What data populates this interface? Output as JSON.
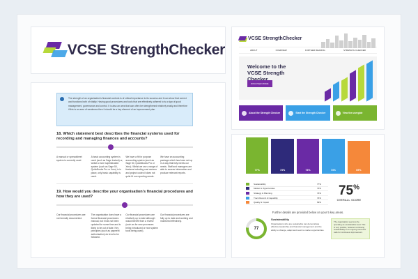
{
  "logo": {
    "text": "VCSE StrengthChecker",
    "brand_colors": [
      "#6a2aa5",
      "#b7d93a",
      "#3aa0e6",
      "#2e2a4a"
    ]
  },
  "questionnaire": {
    "info_text": "The strength of an organisation's financial controls is of critical importance to its success and it can show that correct and functions both of vitality. Having good procedures and tools that are effectively adhered to is a sign of good management, governance and control. It is also an area that can often be strengthened relatively easily and therefore if this is an area of weakness then it should be a key element of an improvement plan.",
    "questions": [
      {
        "title": "18. Which statement best describes the financial systems used for recording and managing finances and accounts?",
        "selected": 0.4,
        "options": [
          "A manual or spreadsheet system is currently used.",
          "A basic accounting system is used (such as Sage Instant) or, whilst a more sophisticated system (such as Sage 50, QuickBooks Pro or Xero) is in place, only basic capability is used.",
          "We have a fit for purpose accounting system (such as Sage 50, QuickBooks Pro or Xero). Whilst we use a range of features including cost centres and project codes it does not quite fit our reporting needs.",
          "We have an accounting package which has been set up in a way that fully meets our needs. Staff and managers are able to access information and produce relevant reports."
        ]
      },
      {
        "title": "19. How would you describe your organisation's financial procedures and how they are used?",
        "selected": 0.5,
        "options": [
          "Our financial procedures are not formally documented.",
          "The organisation does have a formal financial procedures manual, but it has not been updated for some time and is likely to be out of date. Key principles (such as payment authorisation) do tend to be followed.",
          "Our financial procedures are relatively up to date although would benefit from a review (such as for new processes being introduced or new system tools being used).",
          "Our financial procedures are fully up to date and working and monitored effectively."
        ]
      }
    ]
  },
  "home": {
    "logo_text": "VCSE StrengthChecker",
    "nav": [
      "ABOUT",
      "OVERVIEW",
      "FURTHER READING",
      "STRENGTH CHECKER"
    ],
    "hero_title": "Welcome to the VCSE Strength Checker",
    "hero_button": "DISCOVER MORE",
    "tiles": [
      {
        "label": "About the Strength Checker",
        "color": "#6a2aa5"
      },
      {
        "label": "Start the Strength Checker",
        "color": "#3aa0e6"
      },
      {
        "label": "View the usergide",
        "color": "#7ab530"
      }
    ]
  },
  "results": {
    "chart_data": {
      "type": "bar",
      "categories": [
        "Sustainability",
        "Markets & Opportunities",
        "Strategy & Planning",
        "Track Record & Capability",
        "Quality & Impact"
      ],
      "values": [
        77,
        73,
        74,
        74,
        69
      ],
      "value_labels": [
        "77%",
        "73%",
        "74%",
        "74%",
        "69%"
      ],
      "colors": [
        "#7ab530",
        "#2e2a7a",
        "#6a2aa5",
        "#3aa0e6",
        "#f5883a"
      ],
      "ylim": [
        0,
        100
      ]
    },
    "legend": [
      {
        "label": "Sustainability",
        "value": "77%"
      },
      {
        "label": "Market & Opportunities",
        "value": "73%"
      },
      {
        "label": "Strategy & Planning",
        "value": "74%"
      },
      {
        "label": "Track Record & Capability",
        "value": "74%"
      },
      {
        "label": "Quality & Impact",
        "value": "69%"
      }
    ],
    "overall_score": "75",
    "overall_pct": "%",
    "overall_caption": "OVERALL SCORE",
    "further": "Further details are provided below on your 5 key areas.",
    "detail": {
      "donut_value": "77",
      "title": "Sustainability",
      "text": "Organisations who are sustainable can demonstrate effective leadership and financial management and the ability to change, adapt and react to market opportunities.",
      "note": "The organisation seems to be operating at a sustainable level. This is very positive, however continuing sustainability is an ongoing need and calls for continuous improvement."
    }
  }
}
